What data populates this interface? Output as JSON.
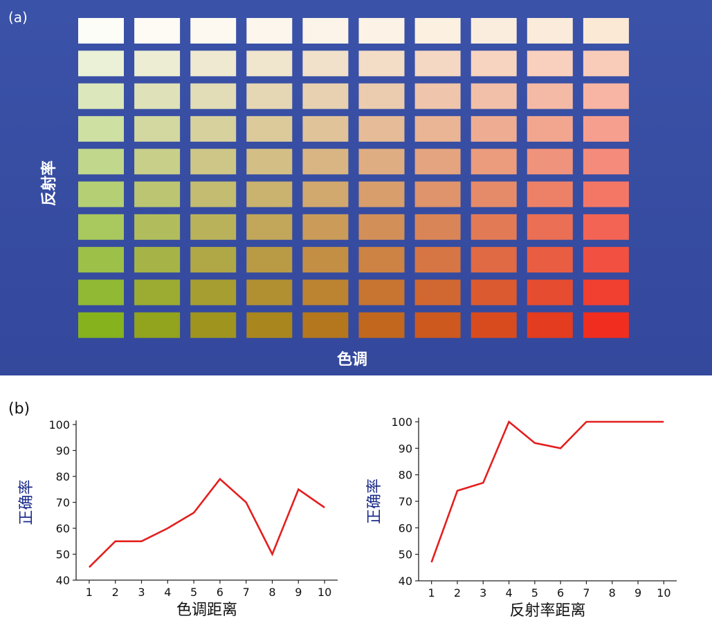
{
  "panel_a": {
    "label": "(a)",
    "y_label": "反射率",
    "x_label": "色调",
    "grid": {
      "rows": 10,
      "cols": 10,
      "top_left": "#fdfdf8",
      "top_right": "#fbe9d6",
      "bottom_left": "#86b21e",
      "bottom_right": "#f02d1e"
    }
  },
  "panel_b": {
    "label": "(b)"
  },
  "chart_data": [
    {
      "type": "line",
      "x": [
        1,
        2,
        3,
        4,
        5,
        6,
        7,
        8,
        9,
        10
      ],
      "series": [
        {
          "values": [
            45,
            55,
            55,
            60,
            66,
            79,
            70,
            50,
            75,
            68
          ],
          "color": "#e41e1e"
        }
      ],
      "title": "",
      "xlabel": "色调距离",
      "ylabel": "正确率",
      "xticks": [
        "1",
        "2",
        "3",
        "4",
        "5",
        "6",
        "7",
        "8",
        "9",
        "10"
      ],
      "yticks": [
        "40",
        "50",
        "60",
        "70",
        "80",
        "90",
        "100"
      ],
      "xlim": [
        0.5,
        10.5
      ],
      "ylim": [
        40,
        100
      ],
      "grid": false
    },
    {
      "type": "line",
      "x": [
        1,
        2,
        3,
        4,
        5,
        6,
        7,
        8,
        9,
        10
      ],
      "series": [
        {
          "values": [
            47,
            74,
            77,
            100,
            92,
            90,
            100,
            100,
            100,
            100
          ],
          "color": "#e41e1e"
        }
      ],
      "title": "",
      "xlabel": "反射率距离",
      "ylabel": "正确率",
      "xticks": [
        "1",
        "2",
        "3",
        "4",
        "5",
        "6",
        "7",
        "8",
        "9",
        "10"
      ],
      "yticks": [
        "40",
        "50",
        "60",
        "70",
        "80",
        "90",
        "100"
      ],
      "xlim": [
        0.5,
        10.5
      ],
      "ylim": [
        40,
        100
      ],
      "grid": false
    }
  ]
}
